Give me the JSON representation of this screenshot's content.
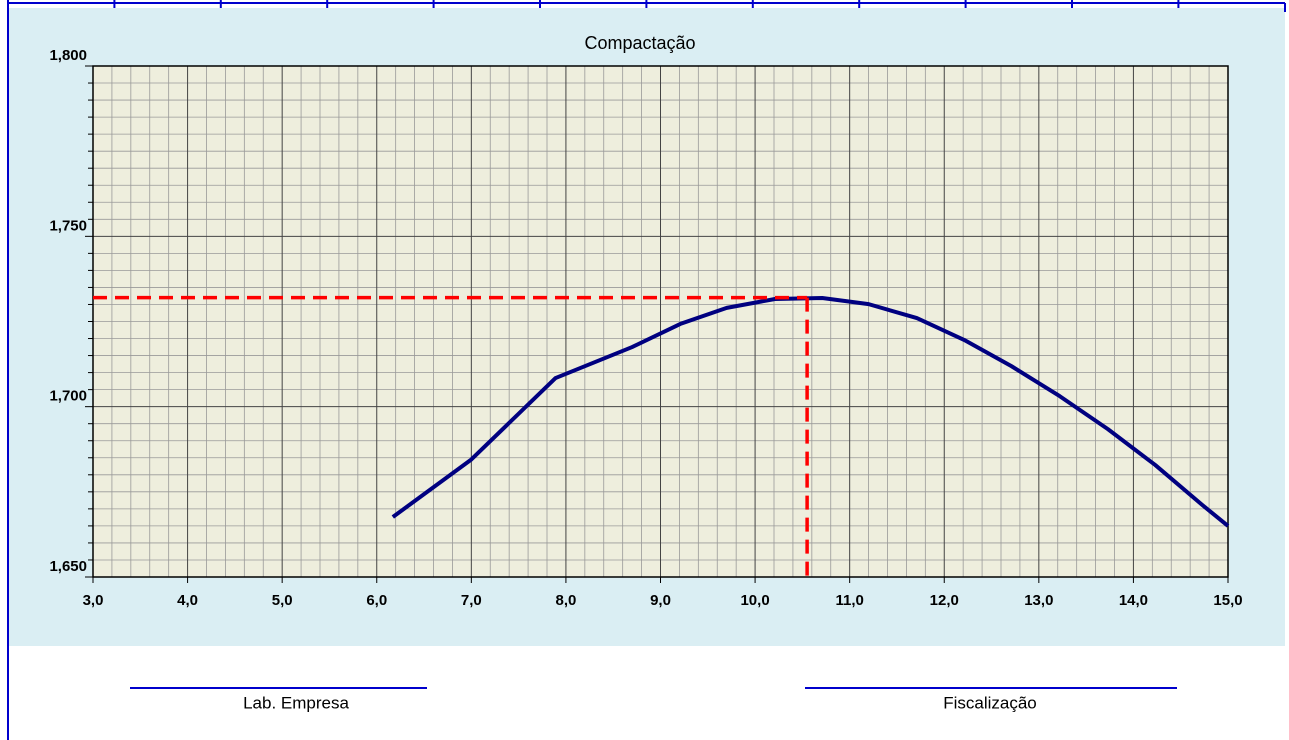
{
  "chart_data": {
    "type": "line",
    "title": "Compactação",
    "series": [
      {
        "color": "#000080",
        "x": [
          6.17,
          7.0,
          7.89,
          8.7,
          9.21,
          9.7,
          10.21,
          10.71,
          11.2,
          11.71,
          12.21,
          12.71,
          13.22,
          13.73,
          14.23,
          14.73,
          15.0
        ],
        "values": [
          1.6676,
          1.6845,
          1.7084,
          1.7175,
          1.7243,
          1.729,
          1.7316,
          1.7319,
          1.7301,
          1.726,
          1.7196,
          1.7119,
          1.7031,
          1.6934,
          1.6829,
          1.6711,
          1.665
        ]
      }
    ],
    "reference_point": {
      "x": 10.55,
      "y": 1.732,
      "color": "#ff0000"
    },
    "xlim": [
      3,
      15
    ],
    "xticks": [
      {
        "value": 3,
        "label": "3,0"
      },
      {
        "value": 4,
        "label": "4,0"
      },
      {
        "value": 5,
        "label": "5,0"
      },
      {
        "value": 6,
        "label": "6,0"
      },
      {
        "value": 7,
        "label": "7,0"
      },
      {
        "value": 8,
        "label": "8,0"
      },
      {
        "value": 9,
        "label": "9,0"
      },
      {
        "value": 10,
        "label": "10,0"
      },
      {
        "value": 11,
        "label": "11,0"
      },
      {
        "value": 12,
        "label": "12,0"
      },
      {
        "value": 13,
        "label": "13,0"
      },
      {
        "value": 14,
        "label": "14,0"
      },
      {
        "value": 15,
        "label": "15,0"
      }
    ],
    "ylim": [
      1.65,
      1.8
    ],
    "yticks": [
      {
        "value": 1.65,
        "label": "1,650"
      },
      {
        "value": 1.7,
        "label": "1,700"
      },
      {
        "value": 1.75,
        "label": "1,750"
      },
      {
        "value": 1.8,
        "label": "1,800"
      }
    ],
    "grid": true,
    "minor_grid": {
      "x": 5,
      "y": 10
    }
  },
  "signatures": [
    "Lab. Empresa",
    "Fiscalização"
  ]
}
